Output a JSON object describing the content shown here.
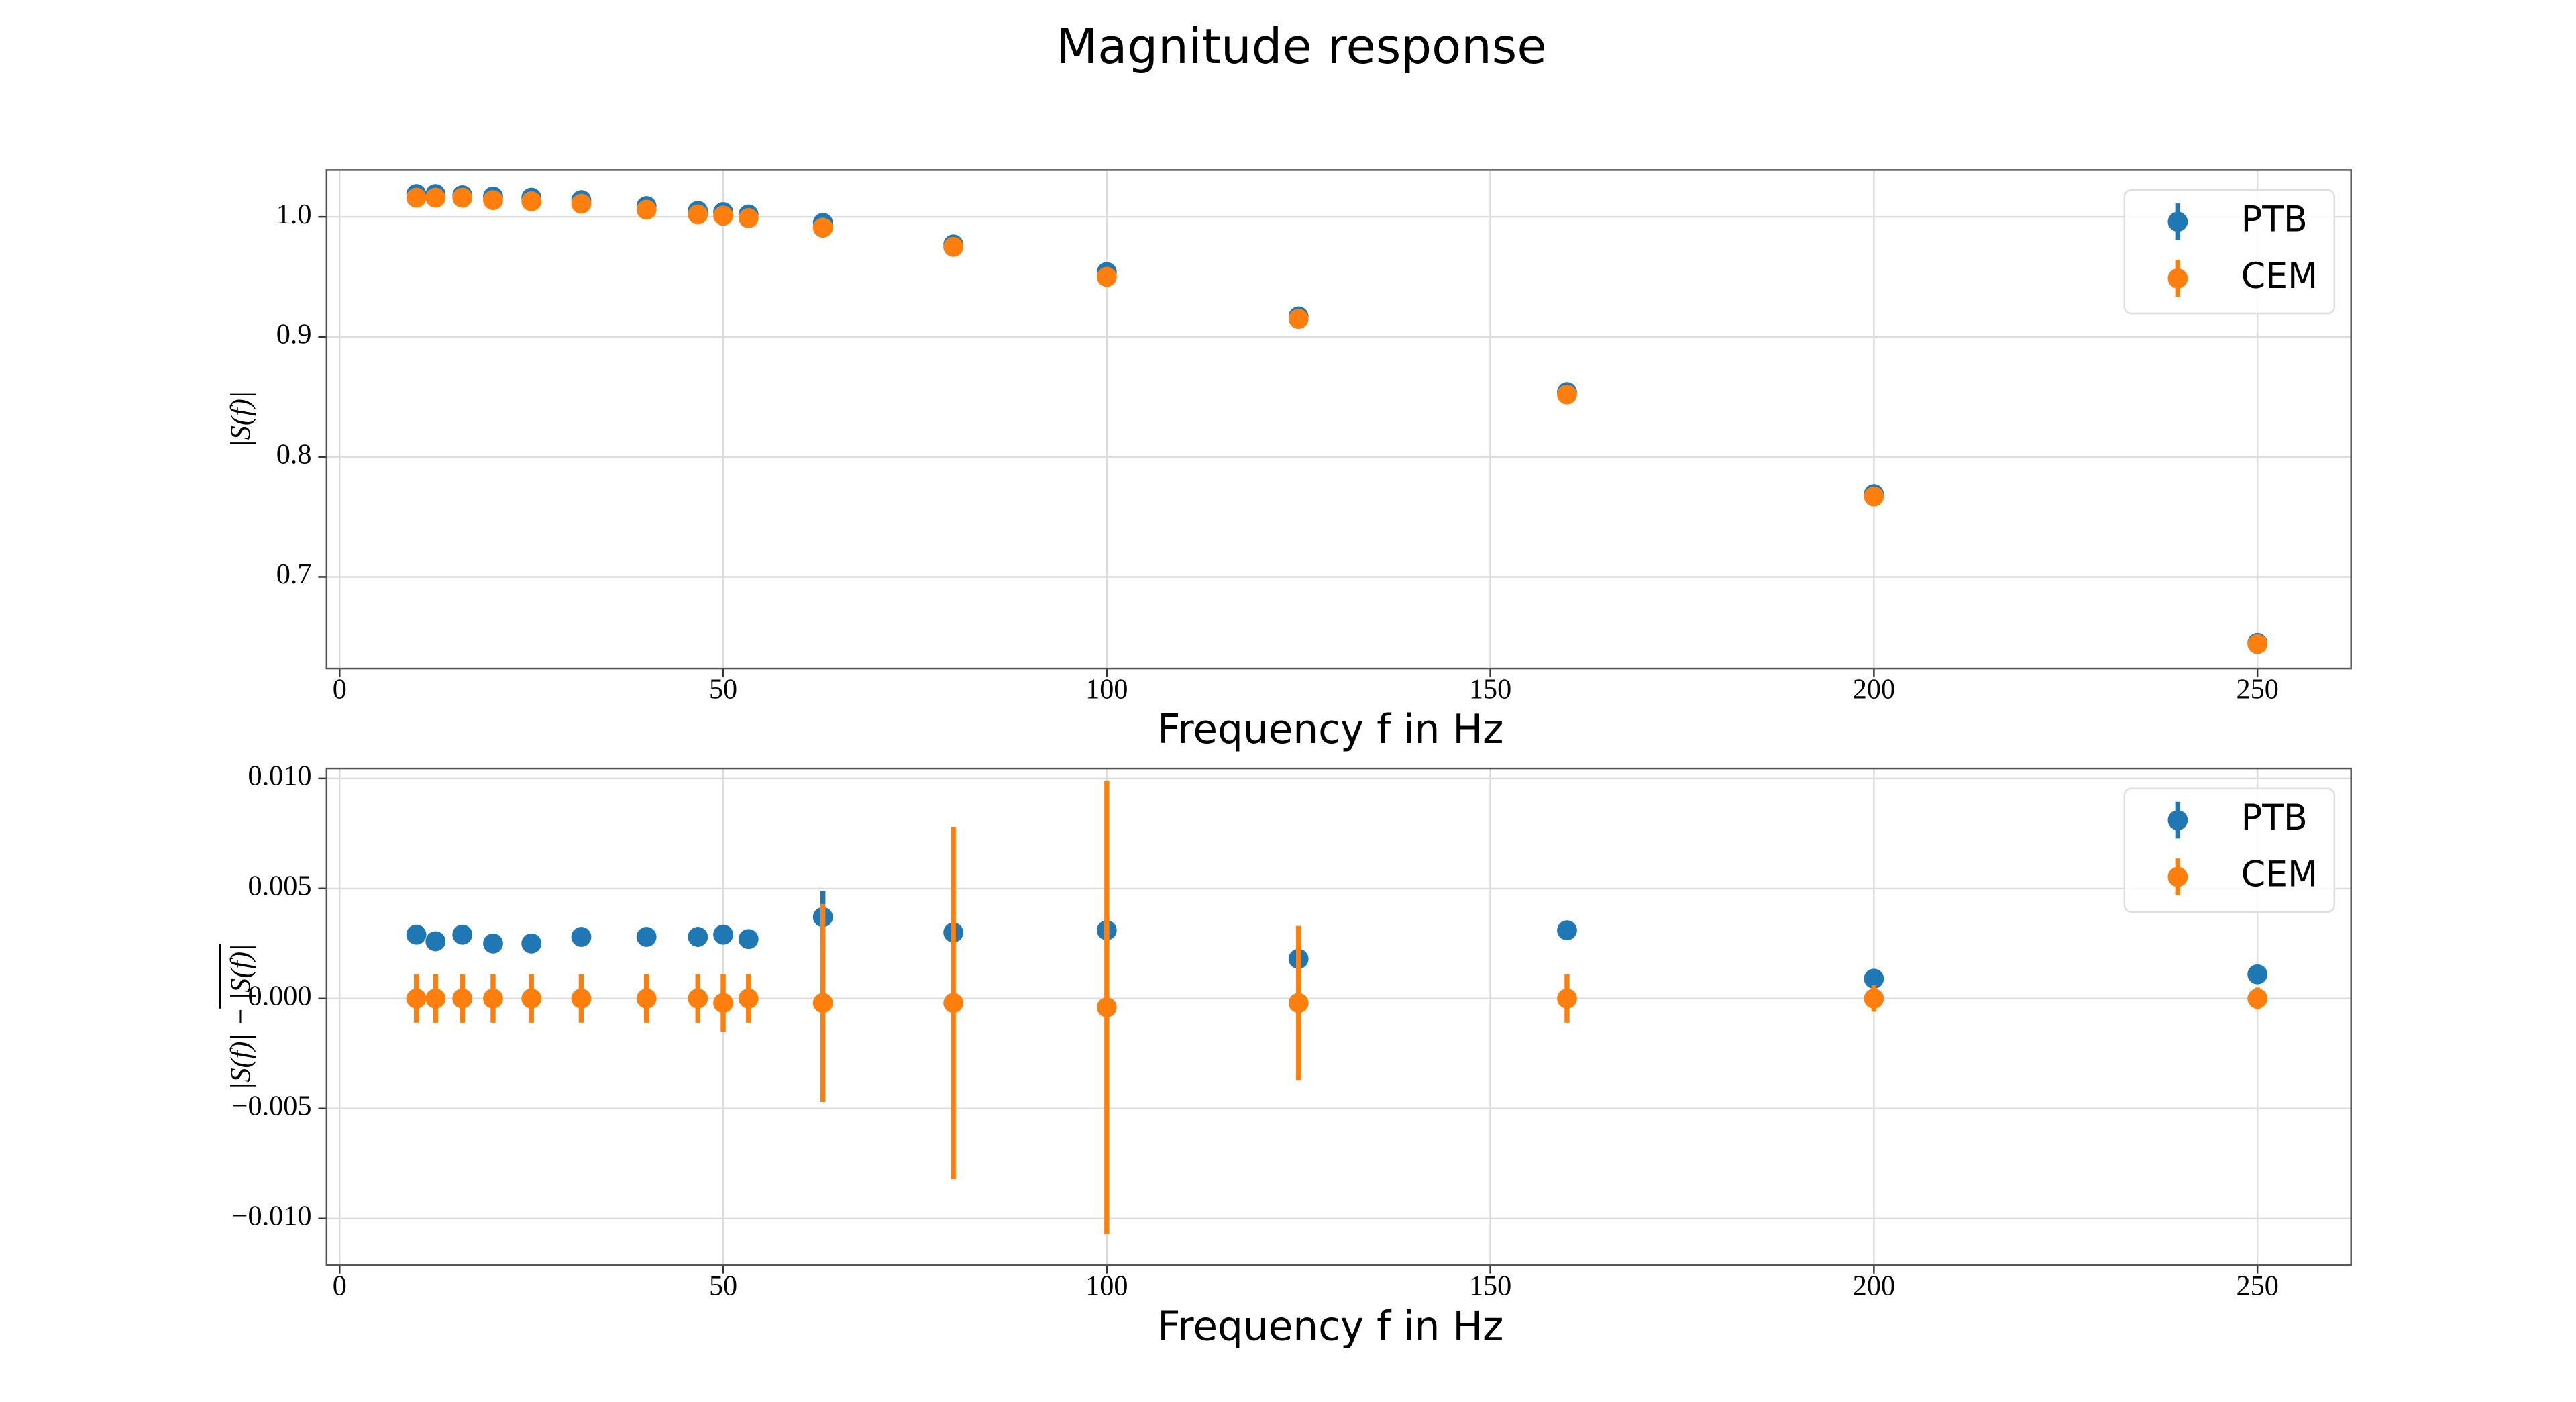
{
  "title": "Magnitude response",
  "chart_data": [
    {
      "type": "scatter",
      "x_label": "Frequency f in Hz",
      "y_label": "|S(f)|",
      "x": [
        10,
        12.5,
        16,
        20,
        25,
        31.5,
        40,
        46.7,
        50,
        53.3,
        63,
        80,
        100,
        125,
        160,
        200,
        250
      ],
      "series": [
        {
          "name": "PTB",
          "color": "#1f77b4",
          "values": [
            1.019,
            1.019,
            1.018,
            1.017,
            1.016,
            1.014,
            1.009,
            1.005,
            1.004,
            1.002,
            0.995,
            0.977,
            0.954,
            0.917,
            0.854,
            0.769,
            0.645
          ]
        },
        {
          "name": "CEM",
          "color": "#ff7f0e",
          "values": [
            1.016,
            1.016,
            1.016,
            1.014,
            1.013,
            1.011,
            1.006,
            1.002,
            1.001,
            0.999,
            0.991,
            0.975,
            0.95,
            0.915,
            0.852,
            0.767,
            0.644
          ]
        }
      ],
      "xlim": [
        -1.7,
        262.2
      ],
      "ylim": [
        0.6236,
        1.039
      ],
      "xticks": [
        0,
        50,
        100,
        150,
        200,
        250
      ],
      "yticks": [
        0.7,
        0.8,
        0.9,
        {
          "value": 1,
          "label": "1.0"
        }
      ],
      "grid": true,
      "legend": "upper right"
    },
    {
      "type": "scatter",
      "x_label": "Frequency f in Hz",
      "y_label": "|S(f)| − |S(f)|",
      "x": [
        10,
        12.5,
        16,
        20,
        25,
        31.5,
        40,
        46.7,
        50,
        53.3,
        63,
        80,
        100,
        125,
        160,
        200,
        250
      ],
      "series": [
        {
          "name": "PTB",
          "color": "#1f77b4",
          "values": [
            0.0029,
            0.0026,
            0.0029,
            0.0025,
            0.0025,
            0.0028,
            0.0028,
            0.0028,
            0.0029,
            0.0027,
            0.0037,
            0.003,
            0.0031,
            0.0018,
            0.0031,
            0.0009,
            0.0011
          ],
          "errors": [
            0.0003,
            0.0004,
            0.0003,
            0.0003,
            0.0003,
            0.0003,
            0.0002,
            0.0002,
            0.0002,
            0.0003,
            0.0012,
            0.0005,
            0.0005,
            0.0005,
            0.0004,
            0.0004,
            0.0004
          ]
        },
        {
          "name": "CEM",
          "color": "#ff7f0e",
          "values": [
            0.0,
            0.0,
            0.0,
            0.0,
            0.0,
            0.0,
            0.0,
            0.0,
            -0.0002,
            0.0,
            -0.0002,
            -0.0002,
            -0.0004,
            -0.0002,
            0.0,
            0.0,
            0.0
          ],
          "errors": [
            0.0011,
            0.0011,
            0.0011,
            0.0011,
            0.0011,
            0.0011,
            0.0011,
            0.0011,
            0.0013,
            0.0011,
            0.0045,
            0.008,
            0.0103,
            0.0035,
            0.0011,
            0.0006,
            0.0005
          ]
        }
      ],
      "xlim": [
        -1.7,
        262.2
      ],
      "ylim": [
        -0.01212,
        0.01045
      ],
      "xticks": [
        0,
        50,
        100,
        150,
        200,
        250
      ],
      "yticks": [
        {
          "value": -0.01,
          "label": "−0.010"
        },
        {
          "value": -0.005,
          "label": "−0.005"
        },
        {
          "value": 0,
          "label": "0.000"
        },
        0.005,
        {
          "value": 0.01,
          "label": "0.010"
        }
      ],
      "grid": true,
      "legend": "upper right"
    }
  ]
}
